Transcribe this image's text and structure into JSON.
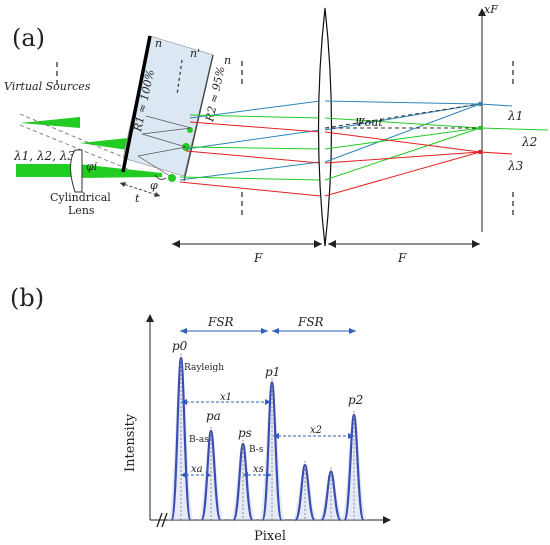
{
  "panel_a": {
    "label": "(a)",
    "virtual_sources": "Virtual Sources",
    "input_wavelengths": "λ1, λ2, λ3",
    "cylindrical_lens": [
      "Cylindrical",
      "Lens"
    ],
    "phi_i": "φi",
    "thickness": "t",
    "phi": "φ",
    "n_outer_top": "n",
    "n_inner": "n'",
    "n_outer_right": "n",
    "r1": "R1 ≈ 100%",
    "r2": "R2 ≈ 95%",
    "psi_out": "Ψout",
    "x_f": "xF",
    "lambda1": "λ1",
    "lambda2": "λ2",
    "lambda3": "λ3",
    "focal_left": "F",
    "focal_right": "F",
    "colors": {
      "blue": "#2f86b8",
      "green": "#22cc22",
      "red": "#e52020",
      "etalon_fill": "#dbe8f3"
    }
  },
  "panel_b": {
    "label": "(b)",
    "fsr_left": "FSR",
    "fsr_right": "FSR",
    "p0": "p0",
    "rayleigh": "Rayleigh",
    "x1": "x1",
    "p1": "p1",
    "pa": "pa",
    "b_as": "B-as",
    "ps": "ps",
    "b_s": "B-s",
    "xa": "xa",
    "xs": "xs",
    "x2": "x2",
    "p2": "p2",
    "y_axis": "Intensity",
    "x_axis": "Pixel",
    "peak_color": "#3b4eb0",
    "peak_heights": [
      1.0,
      0.55,
      0.47,
      0.85,
      0.34,
      0.3,
      0.65
    ]
  }
}
